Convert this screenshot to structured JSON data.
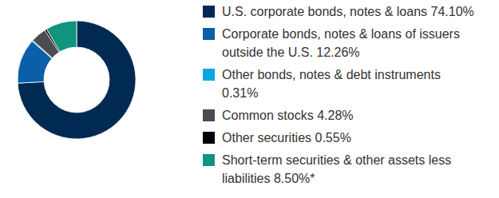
{
  "chart_data": {
    "type": "pie",
    "categories": [
      "U.S. corporate bonds, notes & loans",
      "Corporate bonds, notes & loans of issuers outside the U.S.",
      "Other bonds, notes & debt instruments",
      "Common stocks",
      "Other securities",
      "Short-term securities & other assets less liabilities"
    ],
    "values": [
      74.1,
      12.26,
      0.31,
      4.28,
      0.55,
      8.5
    ],
    "value_labels": [
      "74.10%",
      "12.26%",
      "0.31%",
      "4.28%",
      "0.55%",
      "8.50%*"
    ],
    "colors": [
      "#012a52",
      "#0b5ea8",
      "#0ea5e0",
      "#4d4d4f",
      "#000000",
      "#10947e"
    ],
    "legend": "right"
  }
}
